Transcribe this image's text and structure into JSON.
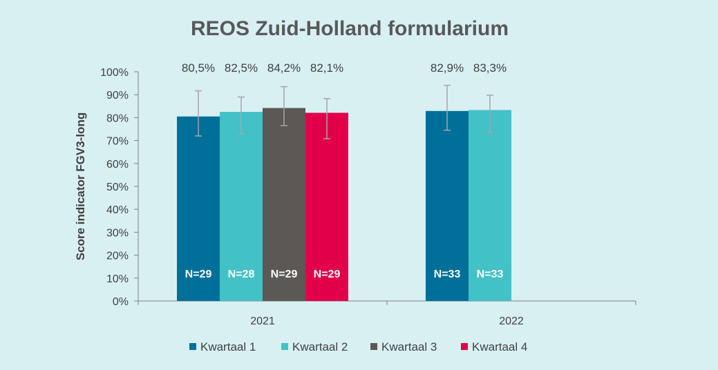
{
  "chart_data": {
    "type": "bar",
    "title": "REOS Zuid-Holland formularium",
    "ylabel": "Score indicator FGV3-long",
    "xlabel": "",
    "ylim": [
      0,
      100
    ],
    "yticks": [
      "0%",
      "10%",
      "20%",
      "30%",
      "40%",
      "50%",
      "60%",
      "70%",
      "80%",
      "90%",
      "100%"
    ],
    "categories": [
      "2021",
      "2022"
    ],
    "legend_position": "bottom",
    "grid": false,
    "series": [
      {
        "name": "Kwartaal 1",
        "color": "#00709a",
        "values": [
          80.5,
          82.9
        ],
        "labels": [
          "80,5%",
          "82,9%"
        ],
        "n": [
          "N=29",
          "N=33"
        ],
        "err_low": [
          72.0,
          74.5
        ],
        "err_high": [
          91.7,
          94.1
        ]
      },
      {
        "name": "Kwartaal 2",
        "color": "#42c1c6",
        "values": [
          82.5,
          83.3
        ],
        "labels": [
          "82,5%",
          "83,3%"
        ],
        "n": [
          "N=28",
          "N=33"
        ],
        "err_low": [
          73.0,
          73.5
        ],
        "err_high": [
          89.0,
          89.8
        ]
      },
      {
        "name": "Kwartaal 3",
        "color": "#5c5856",
        "values": [
          84.2,
          null
        ],
        "labels": [
          "84,2%",
          null
        ],
        "n": [
          "N=29",
          null
        ],
        "err_low": [
          76.5,
          null
        ],
        "err_high": [
          93.5,
          null
        ]
      },
      {
        "name": "Kwartaal 4",
        "color": "#e2004a",
        "values": [
          82.1,
          null
        ],
        "labels": [
          "82,1%",
          null
        ],
        "n": [
          "N=29",
          null
        ],
        "err_low": [
          70.8,
          null
        ],
        "err_high": [
          88.3,
          null
        ]
      }
    ]
  }
}
